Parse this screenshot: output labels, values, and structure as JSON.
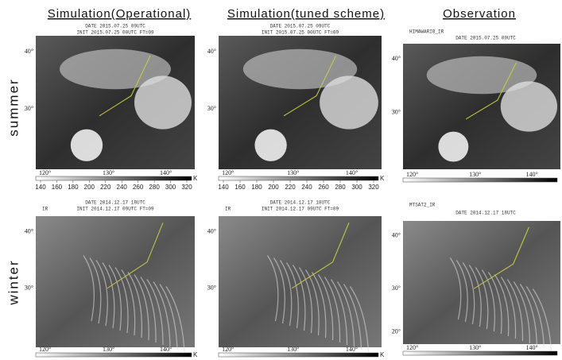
{
  "columns": [
    "Simulation(Operational)",
    "Simulation(tuned scheme)",
    "Observation"
  ],
  "rows": [
    "summer",
    "winter"
  ],
  "panels": [
    {
      "lines": [
        "DATE 2015.07.25 09UTC",
        "INIT 2015.07.25 00UTC FT=09"
      ],
      "lat": [
        "40°",
        "30°"
      ],
      "lon": [
        "120°",
        "130°",
        "140°"
      ],
      "scale": [
        140,
        160,
        180,
        200,
        220,
        240,
        260,
        280,
        300,
        320
      ],
      "unit": "K"
    },
    {
      "lines": [
        "DATE 2015.07.25 09UTC",
        "INIT 2015.07.25 00UTC FT=09"
      ],
      "lat": [
        "40°",
        "30°"
      ],
      "lon": [
        "120°",
        "130°",
        "140°"
      ],
      "scale": [
        140,
        160,
        180,
        200,
        220,
        240,
        260,
        280,
        300,
        320
      ],
      "unit": "K"
    },
    {
      "tag": "HIMAWARI8_IR",
      "lines": [
        "DATE 2015.07.25 09UTC"
      ],
      "lat": [
        "40°",
        "30°"
      ],
      "lon": [
        "120°",
        "130°",
        "140°"
      ]
    },
    {
      "tag": "IR",
      "lines": [
        "DATE 2014.12.17 18UTC",
        "INIT 2014.12.17 09UTC FT=09"
      ],
      "lat": [
        "40°",
        "30°"
      ],
      "lon": [
        "120°",
        "130°",
        "140°"
      ],
      "unit": "K"
    },
    {
      "tag": "IR",
      "lines": [
        "DATE 2014.12.17 18UTC",
        "INIT 2014.12.17 09UTC FT=09"
      ],
      "lat": [
        "40°",
        "30°"
      ],
      "lon": [
        "120°",
        "130°",
        "140°"
      ],
      "unit": "K"
    },
    {
      "tag": "MTSAT2_IR",
      "lines": [
        "DATE 2014.12.17 18UTC"
      ],
      "lat": [
        "40°",
        "30°",
        "20°"
      ],
      "lon": [
        "120°",
        "130°",
        "140°"
      ]
    }
  ]
}
